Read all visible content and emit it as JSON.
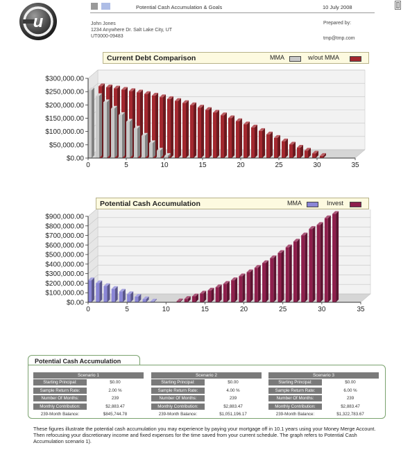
{
  "header": {
    "title": "Potential Cash Accumulation & Goals",
    "date": "10 July 2008",
    "logo_letter": "u",
    "square_colors": [
      "#9a9a9a",
      "#aebde6"
    ]
  },
  "client": {
    "name": "John Jones",
    "address": "1234 Anywhere Dr.  Salt Lake City, UT",
    "id": "UT0000-09483",
    "prepared_by_label": "Prepared by:",
    "email": "tmp@tmp.com"
  },
  "chart_data": [
    {
      "type": "bar",
      "title": "Current Debt Comparison",
      "legend_position": "top-right",
      "grid": true,
      "xlim": [
        0,
        35
      ],
      "xticks": [
        "0",
        "5",
        "10",
        "15",
        "20",
        "25",
        "30",
        "35"
      ],
      "ylim": [
        0,
        300000
      ],
      "yticks": [
        "$0.00",
        "$50,000.00",
        "$100,000.00",
        "$150,000.00",
        "$200,000.00",
        "$250,000.00",
        "$300,000.00"
      ],
      "series": [
        {
          "name": "MMA",
          "color": "#c8c8c8",
          "x": [
            0,
            1,
            2,
            3,
            4,
            5,
            6,
            7,
            8,
            9,
            10
          ],
          "values": [
            255000,
            233000,
            210000,
            186000,
            162000,
            137000,
            111000,
            84000,
            56000,
            28000,
            8000
          ]
        },
        {
          "name": "w/out MMA",
          "color": "#a3282f",
          "x": [
            1,
            2,
            3,
            4,
            5,
            6,
            7,
            8,
            9,
            10,
            11,
            12,
            13,
            14,
            15,
            16,
            17,
            18,
            19,
            20,
            21,
            22,
            23,
            24,
            25,
            26,
            27,
            28,
            29,
            30
          ],
          "values": [
            270000,
            266000,
            262000,
            257000,
            252000,
            247000,
            241000,
            235000,
            229000,
            222000,
            215000,
            207000,
            199000,
            190000,
            181000,
            171000,
            161000,
            150000,
            139000,
            127000,
            115000,
            102000,
            89000,
            76000,
            63000,
            51000,
            39000,
            28000,
            17000,
            8000
          ]
        }
      ]
    },
    {
      "type": "bar",
      "title": "Potential Cash Accumulation",
      "legend_position": "top-right",
      "grid": true,
      "xlim": [
        0,
        35
      ],
      "xticks": [
        "0",
        "5",
        "10",
        "15",
        "20",
        "25",
        "30",
        "35"
      ],
      "ylim": [
        0,
        900000
      ],
      "yticks": [
        "$0.00",
        "$100,000.00",
        "$200,000.00",
        "$300,000.00",
        "$400,000.00",
        "$500,000.00",
        "$600,000.00",
        "$700,000.00",
        "$800,000.00",
        "$900,000.00"
      ],
      "series": [
        {
          "name": "MMA",
          "color": "#8a86d6",
          "x": [
            0,
            1,
            2,
            3,
            4,
            5,
            6,
            7,
            8
          ],
          "values": [
            230000,
            200000,
            170000,
            140000,
            112000,
            85000,
            58000,
            32000,
            8000
          ]
        },
        {
          "name": "Invest",
          "color": "#8e1f4c",
          "x": [
            11,
            12,
            13,
            14,
            15,
            16,
            17,
            18,
            19,
            20,
            21,
            22,
            23,
            24,
            25,
            26,
            27,
            28,
            29,
            30,
            31
          ],
          "values": [
            10000,
            35000,
            62000,
            92000,
            123000,
            157000,
            193000,
            231000,
            272000,
            315000,
            361000,
            410000,
            462000,
            517000,
            575000,
            636000,
            700000,
            768000,
            810000,
            880000,
            925000
          ]
        }
      ]
    }
  ],
  "summary": {
    "title": "Potential Cash Accumulation",
    "scenarios": [
      {
        "name": "Scenario 1",
        "rows": [
          {
            "label": "Starting Principal:",
            "value": "$0.00"
          },
          {
            "label": "Sample Return Rate:",
            "value": "2.00 %"
          },
          {
            "label": "Number Of Months:",
            "value": "239"
          },
          {
            "label": "Monthly Contribution:",
            "value": "$2,883.47"
          },
          {
            "label": "239-Month Balance:",
            "value": "$845,744.78"
          }
        ]
      },
      {
        "name": "Scenario 2",
        "rows": [
          {
            "label": "Starting Principal:",
            "value": "$0.00"
          },
          {
            "label": "Sample Return Rate:",
            "value": "4.00 %"
          },
          {
            "label": "Number Of Months:",
            "value": "239"
          },
          {
            "label": "Monthly Contribution:",
            "value": "$2,883.47"
          },
          {
            "label": "239-Month Balance:",
            "value": "$1,051,196.17"
          }
        ]
      },
      {
        "name": "Scenario 3",
        "rows": [
          {
            "label": "Starting Principal:",
            "value": "$0.00"
          },
          {
            "label": "Sample Return Rate:",
            "value": "6.00 %"
          },
          {
            "label": "Number Of Months:",
            "value": "239"
          },
          {
            "label": "Monthly Contribution:",
            "value": "$2,883.47"
          },
          {
            "label": "239-Month Balance:",
            "value": "$1,322,783.67"
          }
        ]
      }
    ],
    "footnote": "These figures illustrate the potential cash accumulation you may experience by paying your mortgage off in 10.1 years using your Money Merge Account.  Then refocusing your discretionary income and fixed expenses for the time saved from your current schedule. The graph refers to Potential Cash Accumulation scenario 1)."
  }
}
